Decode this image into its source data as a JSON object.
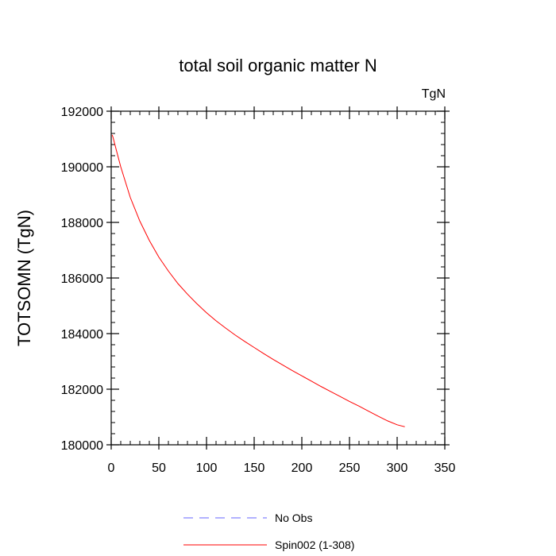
{
  "chart_data": {
    "type": "line",
    "title": "total soil organic matter N",
    "units_label": "TgN",
    "xlabel": "",
    "ylabel": "TOTSOMN  (TgN)",
    "xlim": [
      0,
      350
    ],
    "ylim": [
      180000,
      192000
    ],
    "x_ticks": [
      0,
      50,
      100,
      150,
      200,
      250,
      300,
      350
    ],
    "x_tick_labels": [
      "0",
      "50",
      "100",
      "150",
      "200",
      "250",
      "300",
      "350"
    ],
    "y_ticks": [
      180000,
      182000,
      184000,
      186000,
      188000,
      190000,
      192000
    ],
    "y_tick_labels": [
      "180000",
      "182000",
      "184000",
      "186000",
      "188000",
      "190000",
      "192000"
    ],
    "series": [
      {
        "name": "No Obs",
        "style": "dashed",
        "color": "#6666ff",
        "x": [],
        "y": []
      },
      {
        "name": "Spin002 (1-308)",
        "style": "solid",
        "color": "#ff0000",
        "x": [
          1,
          2,
          5,
          10,
          20,
          30,
          40,
          50,
          60,
          70,
          80,
          90,
          100,
          110,
          120,
          130,
          140,
          150,
          160,
          170,
          180,
          190,
          200,
          210,
          220,
          230,
          240,
          250,
          260,
          270,
          280,
          290,
          300,
          308
        ],
        "y": [
          191150,
          191050,
          190650,
          190000,
          188900,
          188050,
          187350,
          186750,
          186250,
          185800,
          185420,
          185070,
          184750,
          184460,
          184200,
          183950,
          183720,
          183500,
          183280,
          183070,
          182870,
          182670,
          182480,
          182290,
          182100,
          181920,
          181740,
          181560,
          181390,
          181210,
          181030,
          180860,
          180720,
          180650
        ]
      }
    ],
    "legend_position": "bottom"
  }
}
